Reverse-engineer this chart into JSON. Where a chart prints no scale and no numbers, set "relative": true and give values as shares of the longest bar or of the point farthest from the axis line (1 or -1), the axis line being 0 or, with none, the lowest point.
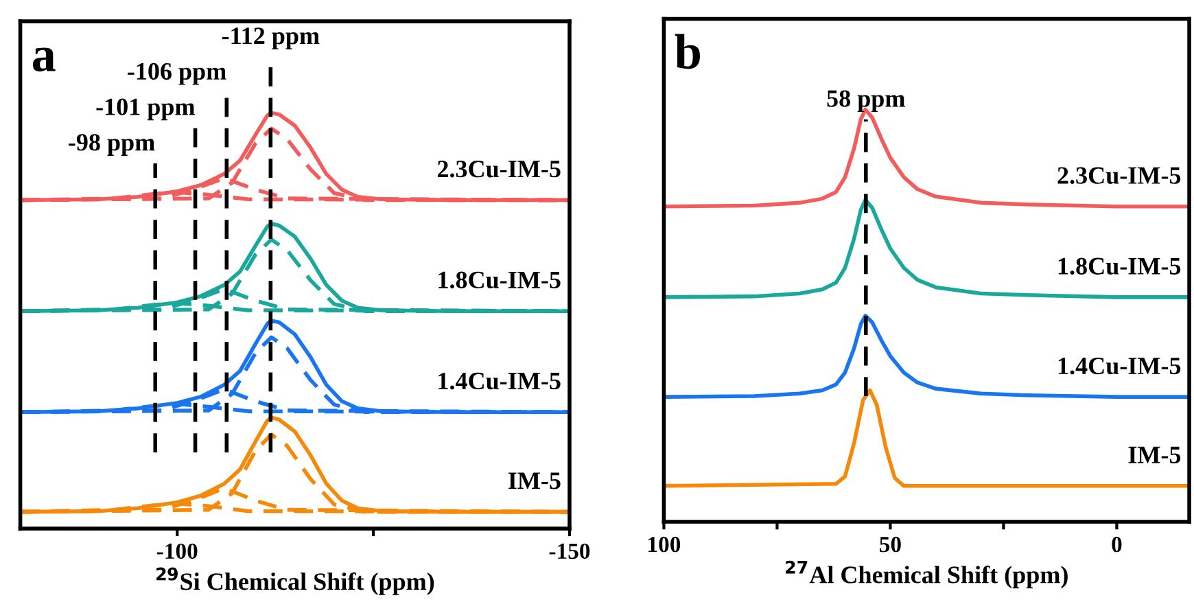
{
  "chart_data": [
    {
      "type": "line",
      "title": "a",
      "xlabel": "$^{29}$Si Chemical Shift (ppm)",
      "relative": true,
      "xlim": [
        -80,
        -150
      ],
      "xticks": [
        -100,
        {
          "value": -125,
          "label": null
        },
        -150
      ],
      "tick_labels": "x",
      "ref_lines": [
        {
          "axis": "x",
          "value": -97.2,
          "label": "-98 ppm",
          "color": "#000000",
          "line_style": "dashed"
        },
        {
          "axis": "x",
          "value": -102.3,
          "label": "-101 ppm",
          "color": "#000000",
          "line_style": "dashed"
        },
        {
          "axis": "x",
          "value": -106.3,
          "label": "-106 ppm",
          "color": "#000000",
          "line_style": "dashed"
        },
        {
          "axis": "x",
          "value": -111.9,
          "label": "-112 ppm",
          "color": "#000000",
          "line_style": "dashed"
        }
      ],
      "series": [
        {
          "name": "2.3Cu-IM-5",
          "color": "#f25c5c",
          "x": [
            -80,
            -90,
            -95,
            -100,
            -103,
            -106,
            -108,
            -110,
            -111.5,
            -112,
            -113,
            -115,
            -117,
            -119,
            -121,
            -123,
            -126,
            -135,
            -150
          ],
          "values": [
            0.79,
            0.792,
            0.798,
            0.811,
            0.826,
            0.853,
            0.885,
            0.948,
            0.994,
            1.0,
            0.996,
            0.969,
            0.916,
            0.853,
            0.815,
            0.798,
            0.792,
            0.79,
            0.79
          ]
        },
        {
          "color": "#f25c5c",
          "line_style": "dashed",
          "x": [
            -80,
            -104,
            -107,
            -110,
            -112,
            -114,
            -117,
            -120,
            -124,
            -150
          ],
          "values": [
            0.79,
            0.794,
            0.832,
            0.927,
            0.962,
            0.937,
            0.864,
            0.807,
            0.79,
            0.79
          ]
        },
        {
          "color": "#f25c5c",
          "line_style": "dashed",
          "x": [
            -80,
            -98,
            -102,
            -106,
            -110,
            -114,
            -150
          ],
          "values": [
            0.79,
            0.794,
            0.815,
            0.843,
            0.815,
            0.794,
            0.79
          ]
        },
        {
          "color": "#f25c5c",
          "line_style": "dashed",
          "x": [
            -80,
            -92,
            -97,
            -100,
            -104,
            -109,
            -150
          ],
          "values": [
            0.79,
            0.794,
            0.805,
            0.809,
            0.803,
            0.792,
            0.79
          ]
        },
        {
          "name": "1.8Cu-IM-5",
          "color": "#1aa79c",
          "x": [
            -80,
            -90,
            -95,
            -100,
            -103,
            -106,
            -108,
            -110,
            -111.5,
            -112,
            -113,
            -115,
            -117,
            -119,
            -121,
            -123,
            -126,
            -135,
            -150
          ],
          "values": [
            0.523,
            0.525,
            0.531,
            0.544,
            0.559,
            0.586,
            0.618,
            0.681,
            0.727,
            0.733,
            0.729,
            0.702,
            0.649,
            0.586,
            0.548,
            0.531,
            0.525,
            0.523,
            0.523
          ]
        },
        {
          "color": "#1aa79c",
          "line_style": "dashed",
          "x": [
            -80,
            -104,
            -107,
            -110,
            -112,
            -114,
            -117,
            -120,
            -124,
            -150
          ],
          "values": [
            0.523,
            0.527,
            0.565,
            0.66,
            0.695,
            0.67,
            0.597,
            0.54,
            0.523,
            0.523
          ]
        },
        {
          "color": "#1aa79c",
          "line_style": "dashed",
          "x": [
            -80,
            -98,
            -102,
            -106,
            -110,
            -114,
            -150
          ],
          "values": [
            0.523,
            0.527,
            0.548,
            0.576,
            0.548,
            0.527,
            0.523
          ]
        },
        {
          "color": "#1aa79c",
          "line_style": "dashed",
          "x": [
            -80,
            -92,
            -97,
            -100,
            -104,
            -109,
            -150
          ],
          "values": [
            0.523,
            0.527,
            0.538,
            0.542,
            0.536,
            0.525,
            0.523
          ]
        },
        {
          "name": "1.4Cu-IM-5",
          "color": "#1a75f0",
          "x": [
            -80,
            -90,
            -95,
            -100,
            -103,
            -106,
            -108,
            -110,
            -111.5,
            -112,
            -113,
            -115,
            -117,
            -119,
            -121,
            -123,
            -126,
            -135,
            -150
          ],
          "values": [
            0.28,
            0.282,
            0.289,
            0.302,
            0.317,
            0.346,
            0.379,
            0.445,
            0.493,
            0.5,
            0.496,
            0.467,
            0.412,
            0.346,
            0.306,
            0.289,
            0.282,
            0.28,
            0.28
          ]
        },
        {
          "color": "#1a75f0",
          "line_style": "dashed",
          "x": [
            -80,
            -104,
            -107,
            -110,
            -112,
            -114,
            -117,
            -120,
            -124,
            -150
          ],
          "values": [
            0.28,
            0.284,
            0.324,
            0.423,
            0.46,
            0.434,
            0.357,
            0.298,
            0.28,
            0.28
          ]
        },
        {
          "color": "#1a75f0",
          "line_style": "dashed",
          "x": [
            -80,
            -98,
            -102,
            -106,
            -110,
            -114,
            -150
          ],
          "values": [
            0.28,
            0.284,
            0.306,
            0.335,
            0.306,
            0.284,
            0.28
          ]
        },
        {
          "color": "#1a75f0",
          "line_style": "dashed",
          "x": [
            -80,
            -92,
            -97,
            -100,
            -104,
            -109,
            -150
          ],
          "values": [
            0.28,
            0.284,
            0.295,
            0.3,
            0.293,
            0.282,
            0.28
          ]
        },
        {
          "name": "IM-5",
          "color": "#f58a0a",
          "x": [
            -80,
            -90,
            -95,
            -100,
            -103,
            -106,
            -108,
            -110,
            -111.5,
            -112,
            -113,
            -115,
            -117,
            -119,
            -121,
            -123,
            -126,
            -135,
            -150
          ],
          "values": [
            0.04,
            0.042,
            0.049,
            0.063,
            0.079,
            0.108,
            0.142,
            0.21,
            0.26,
            0.267,
            0.262,
            0.233,
            0.176,
            0.108,
            0.067,
            0.049,
            0.042,
            0.04,
            0.04
          ]
        },
        {
          "color": "#f58a0a",
          "line_style": "dashed",
          "x": [
            -80,
            -104,
            -107,
            -110,
            -112,
            -114,
            -117,
            -120,
            -124,
            -150
          ],
          "values": [
            0.04,
            0.045,
            0.085,
            0.188,
            0.226,
            0.199,
            0.119,
            0.058,
            0.04,
            0.04
          ]
        },
        {
          "color": "#f58a0a",
          "line_style": "dashed",
          "x": [
            -80,
            -98,
            -102,
            -106,
            -110,
            -114,
            -150
          ],
          "values": [
            0.04,
            0.045,
            0.067,
            0.097,
            0.067,
            0.045,
            0.04
          ]
        },
        {
          "color": "#f58a0a",
          "line_style": "dashed",
          "x": [
            -80,
            -92,
            -97,
            -100,
            -104,
            -109,
            -150
          ],
          "values": [
            0.04,
            0.045,
            0.056,
            0.06,
            0.054,
            0.042,
            0.04
          ]
        }
      ]
    },
    {
      "type": "line",
      "title": "b",
      "xlabel": "$^{27}$Al Chemical Shift (ppm)",
      "relative": true,
      "xlim": [
        100,
        -16
      ],
      "xticks": [
        100,
        {
          "value": 75,
          "label": null
        },
        50,
        {
          "value": 25,
          "label": null
        },
        0
      ],
      "tick_labels": "x",
      "ref_lines": [
        {
          "axis": "x",
          "value": 55.4,
          "label": "58 ppm",
          "color": "#000000",
          "line_style": "dashed"
        }
      ],
      "series": [
        {
          "name": "2.3Cu-IM-5",
          "color": "#f25c5c",
          "x": [
            100,
            80,
            70,
            65,
            62,
            60,
            58,
            56.5,
            55.5,
            54,
            52,
            50,
            47,
            44,
            40,
            30,
            20,
            0,
            -16
          ],
          "values": [
            0.765,
            0.767,
            0.774,
            0.784,
            0.8,
            0.836,
            0.906,
            0.977,
            1.0,
            0.981,
            0.93,
            0.883,
            0.836,
            0.807,
            0.789,
            0.774,
            0.77,
            0.765,
            0.765
          ]
        },
        {
          "name": "1.8Cu-IM-5",
          "color": "#1aa79c",
          "x": [
            100,
            80,
            70,
            65,
            62,
            60,
            58,
            56.5,
            55.5,
            54,
            52,
            50,
            47,
            44,
            40,
            30,
            20,
            0,
            -16
          ],
          "values": [
            0.545,
            0.547,
            0.554,
            0.564,
            0.58,
            0.616,
            0.687,
            0.757,
            0.781,
            0.762,
            0.71,
            0.663,
            0.616,
            0.587,
            0.569,
            0.554,
            0.55,
            0.545,
            0.545
          ]
        },
        {
          "name": "1.4Cu-IM-5",
          "color": "#1a75f0",
          "x": [
            100,
            80,
            70,
            65,
            62,
            60,
            58,
            56.5,
            55.5,
            54,
            52,
            50,
            47,
            44,
            40,
            30,
            20,
            0,
            -16
          ],
          "values": [
            0.303,
            0.305,
            0.311,
            0.319,
            0.333,
            0.362,
            0.421,
            0.48,
            0.5,
            0.484,
            0.441,
            0.402,
            0.362,
            0.338,
            0.323,
            0.311,
            0.307,
            0.303,
            0.303
          ]
        },
        {
          "name": "IM-5",
          "color": "#f58a0a",
          "x": [
            100,
            62,
            60,
            58,
            56,
            54.5,
            53,
            51,
            49,
            47,
            -16
          ],
          "values": [
            0.087,
            0.092,
            0.11,
            0.191,
            0.296,
            0.319,
            0.284,
            0.18,
            0.106,
            0.087,
            0.087
          ]
        }
      ]
    }
  ]
}
